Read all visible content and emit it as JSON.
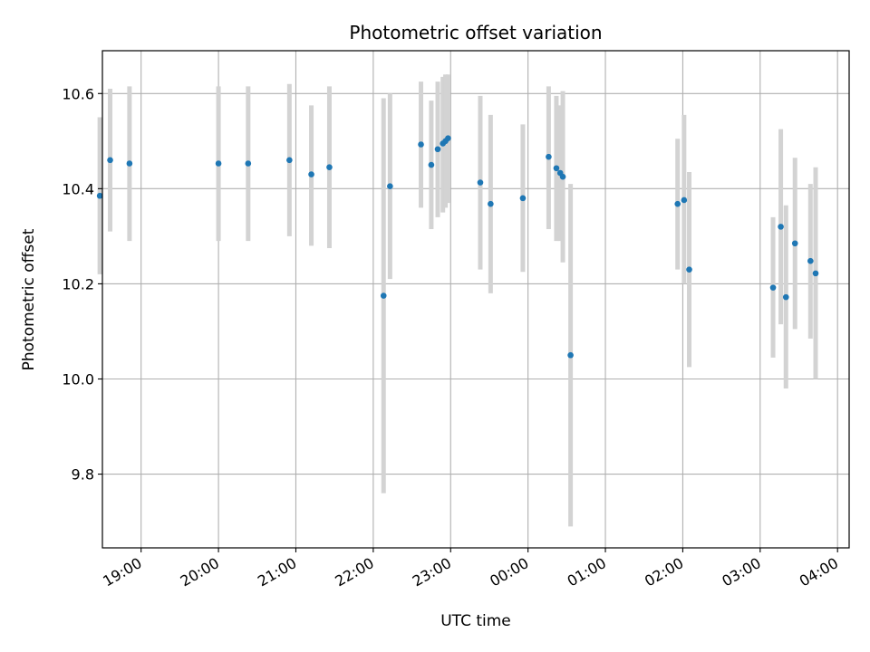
{
  "chart_data": {
    "type": "scatter",
    "title": "Photometric offset variation",
    "xlabel": "UTC time",
    "ylabel": "Photometric offset",
    "xlim": [
      "2023-01-01T18:30",
      "2023-01-02T04:09"
    ],
    "ylim": [
      9.645,
      10.69
    ],
    "grid": true,
    "x_ticks": [
      {
        "t": "2023-01-01T19:00",
        "label": "19:00"
      },
      {
        "t": "2023-01-01T20:00",
        "label": "20:00"
      },
      {
        "t": "2023-01-01T21:00",
        "label": "21:00"
      },
      {
        "t": "2023-01-01T22:00",
        "label": "22:00"
      },
      {
        "t": "2023-01-01T23:00",
        "label": "23:00"
      },
      {
        "t": "2023-01-02T00:00",
        "label": "00:00"
      },
      {
        "t": "2023-01-02T01:00",
        "label": "01:00"
      },
      {
        "t": "2023-01-02T02:00",
        "label": "02:00"
      },
      {
        "t": "2023-01-02T03:00",
        "label": "03:00"
      },
      {
        "t": "2023-01-02T04:00",
        "label": "04:00"
      }
    ],
    "y_ticks": [
      {
        "v": 9.8,
        "label": "9.8"
      },
      {
        "v": 10.0,
        "label": "10.0"
      },
      {
        "v": 10.2,
        "label": "10.2"
      },
      {
        "v": 10.4,
        "label": "10.4"
      },
      {
        "v": 10.6,
        "label": "10.6"
      }
    ],
    "point_color": "#1f77b4",
    "errorbar_color": "#d3d3d3",
    "points": [
      {
        "t": "2023-01-01T18:28",
        "y": 10.385,
        "lo": 10.22,
        "hi": 10.55
      },
      {
        "t": "2023-01-01T18:36",
        "y": 10.46,
        "lo": 10.31,
        "hi": 10.61
      },
      {
        "t": "2023-01-01T18:51",
        "y": 10.453,
        "lo": 10.29,
        "hi": 10.615
      },
      {
        "t": "2023-01-01T20:00",
        "y": 10.453,
        "lo": 10.29,
        "hi": 10.615
      },
      {
        "t": "2023-01-01T20:23",
        "y": 10.453,
        "lo": 10.29,
        "hi": 10.615
      },
      {
        "t": "2023-01-01T20:55",
        "y": 10.46,
        "lo": 10.3,
        "hi": 10.62
      },
      {
        "t": "2023-01-01T21:12",
        "y": 10.43,
        "lo": 10.28,
        "hi": 10.575
      },
      {
        "t": "2023-01-01T21:26",
        "y": 10.445,
        "lo": 10.275,
        "hi": 10.615
      },
      {
        "t": "2023-01-01T22:08",
        "y": 10.175,
        "lo": 9.76,
        "hi": 10.59
      },
      {
        "t": "2023-01-01T22:13",
        "y": 10.405,
        "lo": 10.21,
        "hi": 10.6
      },
      {
        "t": "2023-01-01T22:37",
        "y": 10.493,
        "lo": 10.36,
        "hi": 10.625
      },
      {
        "t": "2023-01-01T22:45",
        "y": 10.45,
        "lo": 10.315,
        "hi": 10.585
      },
      {
        "t": "2023-01-01T22:50",
        "y": 10.483,
        "lo": 10.34,
        "hi": 10.625
      },
      {
        "t": "2023-01-01T22:54",
        "y": 10.495,
        "lo": 10.35,
        "hi": 10.635
      },
      {
        "t": "2023-01-01T22:56",
        "y": 10.5,
        "lo": 10.36,
        "hi": 10.64
      },
      {
        "t": "2023-01-01T22:58",
        "y": 10.506,
        "lo": 10.37,
        "hi": 10.64
      },
      {
        "t": "2023-01-01T23:23",
        "y": 10.413,
        "lo": 10.23,
        "hi": 10.595
      },
      {
        "t": "2023-01-01T23:31",
        "y": 10.368,
        "lo": 10.18,
        "hi": 10.555
      },
      {
        "t": "2023-01-01T23:56",
        "y": 10.38,
        "lo": 10.225,
        "hi": 10.535
      },
      {
        "t": "2023-01-02T00:16",
        "y": 10.467,
        "lo": 10.315,
        "hi": 10.615
      },
      {
        "t": "2023-01-02T00:22",
        "y": 10.443,
        "lo": 10.29,
        "hi": 10.595
      },
      {
        "t": "2023-01-02T00:25",
        "y": 10.433,
        "lo": 10.29,
        "hi": 10.575
      },
      {
        "t": "2023-01-02T00:27",
        "y": 10.425,
        "lo": 10.245,
        "hi": 10.605
      },
      {
        "t": "2023-01-02T00:33",
        "y": 10.05,
        "lo": 9.69,
        "hi": 10.41
      },
      {
        "t": "2023-01-02T01:56",
        "y": 10.368,
        "lo": 10.23,
        "hi": 10.505
      },
      {
        "t": "2023-01-02T02:01",
        "y": 10.376,
        "lo": 10.2,
        "hi": 10.555
      },
      {
        "t": "2023-01-02T02:05",
        "y": 10.23,
        "lo": 10.025,
        "hi": 10.435
      },
      {
        "t": "2023-01-02T03:10",
        "y": 10.192,
        "lo": 10.045,
        "hi": 10.34
      },
      {
        "t": "2023-01-02T03:16",
        "y": 10.32,
        "lo": 10.115,
        "hi": 10.525
      },
      {
        "t": "2023-01-02T03:20",
        "y": 10.172,
        "lo": 9.98,
        "hi": 10.365
      },
      {
        "t": "2023-01-02T03:27",
        "y": 10.285,
        "lo": 10.105,
        "hi": 10.465
      },
      {
        "t": "2023-01-02T03:39",
        "y": 10.248,
        "lo": 10.085,
        "hi": 10.41
      },
      {
        "t": "2023-01-02T03:43",
        "y": 10.222,
        "lo": 10.0,
        "hi": 10.445
      }
    ]
  }
}
